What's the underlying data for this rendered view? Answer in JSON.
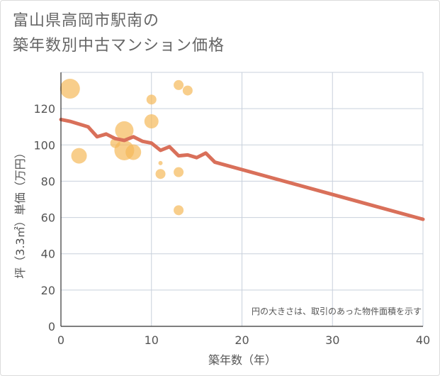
{
  "chart_data": {
    "type": "scatter",
    "title_lines": [
      "富山県高岡市駅南の",
      "築年数別中古マンション価格"
    ],
    "xlabel": "築年数（年）",
    "ylabel": "坪（3.3㎡）単価（万円）",
    "annotation": "円の大きさは、取引のあった物件面積を示す",
    "xlim": [
      0,
      40
    ],
    "ylim": [
      0,
      140
    ],
    "x_ticks": [
      0,
      10,
      20,
      30,
      40
    ],
    "y_ticks": [
      0,
      20,
      40,
      60,
      80,
      100,
      120
    ],
    "grid": true,
    "colors": {
      "bubble": "#f5b95a",
      "trend": "#d9705a",
      "grid": "#c8d0dc",
      "axis": "#333333"
    },
    "bubbles": [
      {
        "x": 1,
        "y": 131,
        "r": 14
      },
      {
        "x": 2,
        "y": 94,
        "r": 11
      },
      {
        "x": 6,
        "y": 101,
        "r": 7
      },
      {
        "x": 7,
        "y": 97,
        "r": 14
      },
      {
        "x": 7,
        "y": 108,
        "r": 13
      },
      {
        "x": 8,
        "y": 96,
        "r": 11
      },
      {
        "x": 10,
        "y": 125,
        "r": 7
      },
      {
        "x": 10,
        "y": 113,
        "r": 10
      },
      {
        "x": 11,
        "y": 90,
        "r": 3
      },
      {
        "x": 11,
        "y": 84,
        "r": 7
      },
      {
        "x": 13,
        "y": 133,
        "r": 7
      },
      {
        "x": 14,
        "y": 130,
        "r": 7
      },
      {
        "x": 13,
        "y": 85,
        "r": 7
      },
      {
        "x": 13,
        "y": 64,
        "r": 7
      }
    ],
    "trend": {
      "x": [
        0,
        1,
        2,
        3,
        4,
        5,
        6,
        7,
        8,
        9,
        10,
        11,
        12,
        13,
        14,
        15,
        16,
        17,
        40
      ],
      "y": [
        114,
        113,
        111.5,
        110,
        104.5,
        106,
        103.5,
        102.5,
        104.5,
        102,
        101,
        97,
        99,
        94,
        94.5,
        93,
        95.5,
        90.5,
        59
      ]
    }
  }
}
